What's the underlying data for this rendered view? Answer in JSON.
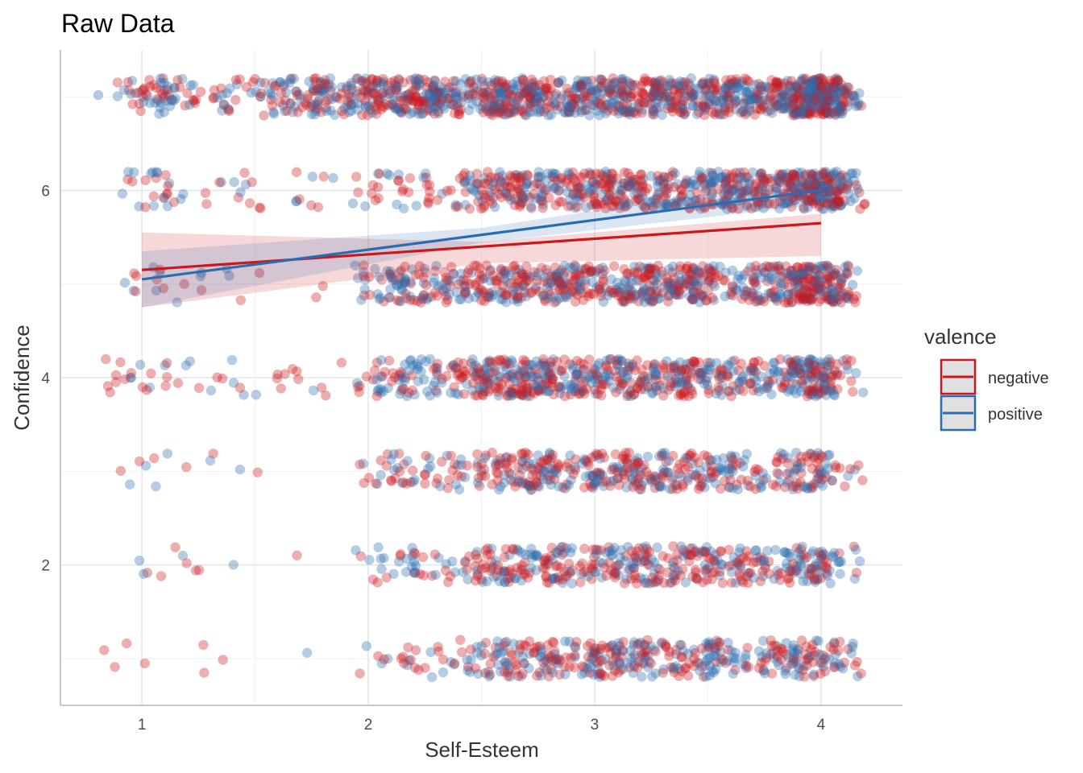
{
  "chart_data": {
    "type": "scatter",
    "title": "Raw Data",
    "xlabel": "Self-Esteem",
    "ylabel": "Confidence",
    "xlim": [
      0.64,
      4.36
    ],
    "ylim": [
      0.5,
      7.5
    ],
    "x_ticks": [
      "1",
      "2",
      "3",
      "4"
    ],
    "y_ticks": [
      "2",
      "4",
      "6"
    ],
    "grid": true,
    "legend": {
      "title": "valence",
      "position": "right",
      "entries": [
        {
          "label": "negative",
          "color": "#CB181D"
        },
        {
          "label": "positive",
          "color": "#2B6CB0"
        }
      ]
    },
    "jitter": {
      "x_width": 0.2,
      "y_height": 0.2,
      "x_range": [
        1,
        4
      ]
    },
    "point_levels": [
      {
        "y": 7,
        "density": [
          35,
          55,
          150,
          240,
          260,
          260,
          240,
          230
        ]
      },
      {
        "y": 6,
        "density": [
          18,
          22,
          18,
          55,
          180,
          210,
          200,
          160
        ]
      },
      {
        "y": 5,
        "density": [
          10,
          12,
          2,
          130,
          210,
          210,
          180,
          130
        ]
      },
      {
        "y": 4,
        "density": [
          16,
          18,
          16,
          110,
          230,
          190,
          140,
          90
        ]
      },
      {
        "y": 3,
        "density": [
          6,
          6,
          2,
          60,
          150,
          160,
          110,
          40
        ]
      },
      {
        "y": 2,
        "density": [
          5,
          6,
          1,
          55,
          140,
          150,
          110,
          55
        ]
      },
      {
        "y": 1,
        "density": [
          4,
          3,
          1,
          40,
          130,
          150,
          110,
          45
        ]
      }
    ],
    "series": [
      {
        "name": "negative",
        "color": "#CB181D",
        "fit": {
          "x": [
            1,
            4
          ],
          "y": [
            5.15,
            5.65
          ]
        },
        "ci": {
          "x": [
            1,
            2.5,
            4
          ],
          "lower": [
            4.75,
            5.22,
            5.3
          ],
          "upper": [
            5.55,
            5.45,
            5.75
          ]
        }
      },
      {
        "name": "positive",
        "color": "#2B6CB0",
        "fit": {
          "x": [
            1,
            4
          ],
          "y": [
            5.05,
            6.0
          ]
        },
        "ci": {
          "x": [
            1,
            2.5,
            4
          ],
          "lower": [
            4.75,
            5.44,
            5.85
          ],
          "upper": [
            5.35,
            5.6,
            6.15
          ]
        }
      }
    ]
  }
}
